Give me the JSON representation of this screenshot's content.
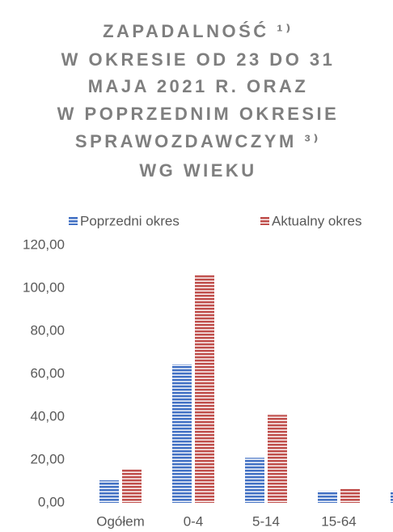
{
  "chart_data": {
    "type": "bar",
    "title": [
      "ZAPADALNOŚĆ ¹⁾",
      "W OKRESIE OD 23 DO 31",
      "MAJA 2021 R. ORAZ",
      "W POPRZEDNIM OKRESIE",
      "SPRAWOZDAWCZYM ³⁾",
      "WG WIEKU"
    ],
    "categories": [
      "Ogółem",
      "0-4",
      "5-14",
      "15-64",
      null
    ],
    "series": [
      {
        "name": "Poprzedni okres",
        "color": "#4472c4",
        "values": [
          10.5,
          64.5,
          21,
          5.5,
          5.5
        ]
      },
      {
        "name": "Aktualny okres",
        "color": "#c0504d",
        "values": [
          15.5,
          106,
          41,
          6.5,
          null
        ]
      }
    ],
    "ylim": [
      0,
      120
    ],
    "yticks": [
      {
        "value": 0,
        "label": "0,00"
      },
      {
        "value": 20,
        "label": "20,00"
      },
      {
        "value": 40,
        "label": "40,00"
      },
      {
        "value": 60,
        "label": "60,00"
      },
      {
        "value": 80,
        "label": "80,00"
      },
      {
        "value": 100,
        "label": "100,00"
      },
      {
        "value": 120,
        "label": "120,00"
      }
    ],
    "grid": false,
    "legend": "top"
  }
}
